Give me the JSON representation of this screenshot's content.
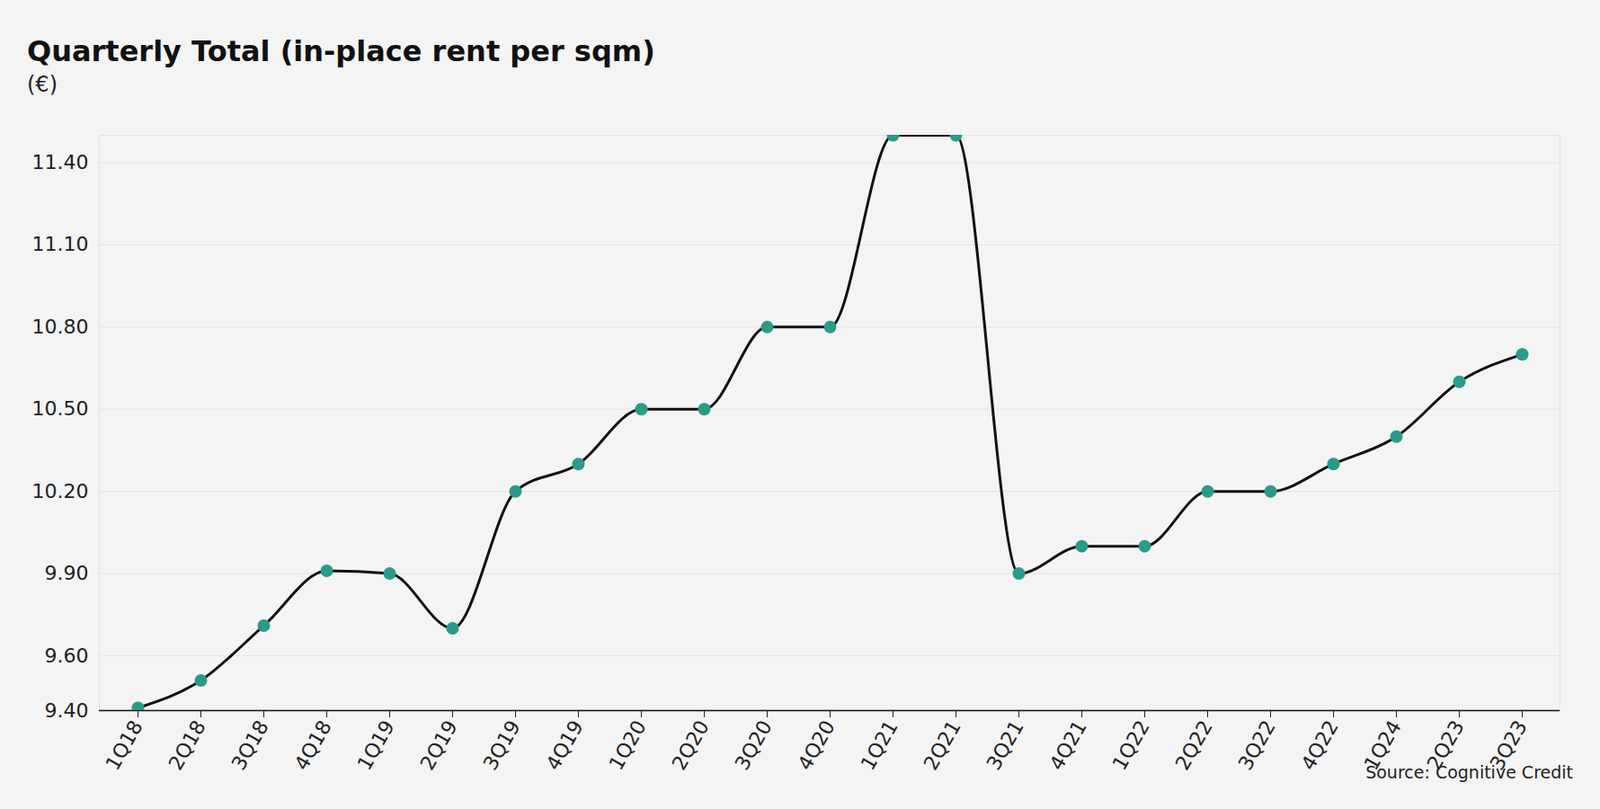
{
  "chart_data": {
    "type": "line",
    "title": "Quarterly Total (in-place rent per sqm)",
    "subtitle": "(€)",
    "source": "Source: Cognitive Credit",
    "categories": [
      "1Q18",
      "2Q18",
      "3Q18",
      "4Q18",
      "1Q19",
      "2Q19",
      "3Q19",
      "4Q19",
      "1Q20",
      "2Q20",
      "3Q20",
      "4Q20",
      "1Q21",
      "2Q21",
      "3Q21",
      "4Q21",
      "1Q22",
      "2Q22",
      "3Q22",
      "4Q22",
      "1Q24",
      "2Q23",
      "3Q23"
    ],
    "values": [
      9.41,
      9.51,
      9.71,
      9.91,
      9.9,
      9.7,
      10.2,
      10.3,
      10.5,
      10.5,
      10.8,
      10.8,
      11.5,
      11.5,
      9.9,
      10.0,
      10.0,
      10.2,
      10.2,
      10.3,
      10.4,
      10.6,
      10.7
    ],
    "color": "#2a9a8b",
    "marker": "circle",
    "ylim": [
      9.4,
      11.5
    ],
    "yticks": [
      {
        "value": 9.4,
        "label": "9.40"
      },
      {
        "value": 9.6,
        "label": "9.60"
      },
      {
        "value": 9.9,
        "label": "9.90"
      },
      {
        "value": 10.2,
        "label": "10.20"
      },
      {
        "value": 10.5,
        "label": "10.50"
      },
      {
        "value": 10.8,
        "label": "10.80"
      },
      {
        "value": 11.1,
        "label": "11.10"
      },
      {
        "value": 11.4,
        "label": "11.40"
      }
    ],
    "grid": true
  }
}
